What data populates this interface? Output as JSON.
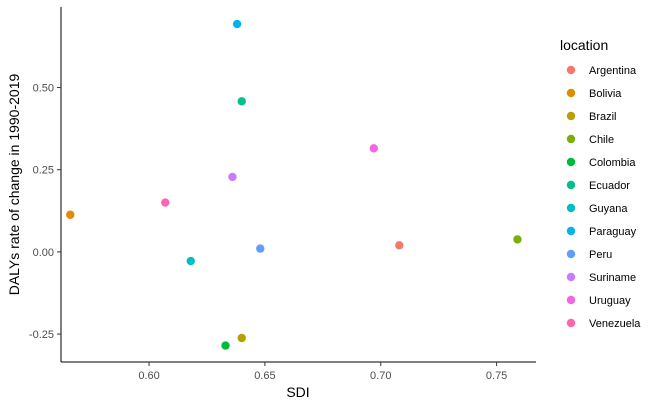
{
  "chart_data": {
    "type": "scatter",
    "title": "",
    "xlabel": "SDI",
    "ylabel": "DALYs rate of change in 1990-2019",
    "xlim": [
      0.562,
      0.767
    ],
    "ylim": [
      -0.335,
      0.745
    ],
    "xticks": [
      0.6,
      0.65,
      0.7,
      0.75
    ],
    "xtick_labels": [
      "0.60",
      "0.65",
      "0.70",
      "0.75"
    ],
    "yticks": [
      -0.25,
      0.0,
      0.25,
      0.5
    ],
    "ytick_labels": [
      "-0.25",
      "0.00",
      "0.25",
      "0.50"
    ],
    "grid": false,
    "legend": {
      "title": "location",
      "position": "right"
    },
    "series": [
      {
        "name": "Argentina",
        "color": "#F8766D",
        "x": 0.708,
        "y": 0.02
      },
      {
        "name": "Bolivia",
        "color": "#DE8C00",
        "x": 0.566,
        "y": 0.113
      },
      {
        "name": "Brazil",
        "color": "#B79F00",
        "x": 0.64,
        "y": -0.262
      },
      {
        "name": "Chile",
        "color": "#7CAE00",
        "x": 0.759,
        "y": 0.038
      },
      {
        "name": "Colombia",
        "color": "#00BA38",
        "x": 0.633,
        "y": -0.285
      },
      {
        "name": "Ecuador",
        "color": "#00C08B",
        "x": 0.64,
        "y": 0.458
      },
      {
        "name": "Guyana",
        "color": "#00BFC4",
        "x": 0.618,
        "y": -0.028
      },
      {
        "name": "Paraguay",
        "color": "#00B4F0",
        "x": 0.638,
        "y": 0.693
      },
      {
        "name": "Peru",
        "color": "#619CFF",
        "x": 0.648,
        "y": 0.01
      },
      {
        "name": "Suriname",
        "color": "#C77CFF",
        "x": 0.636,
        "y": 0.228
      },
      {
        "name": "Uruguay",
        "color": "#F564E3",
        "x": 0.697,
        "y": 0.315
      },
      {
        "name": "Venezuela",
        "color": "#FF64B0",
        "x": 0.607,
        "y": 0.15
      }
    ]
  }
}
